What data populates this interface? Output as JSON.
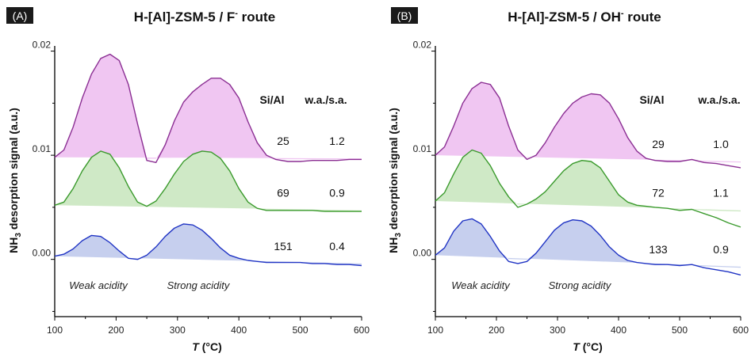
{
  "chart_data": [
    {
      "type": "area",
      "panel_label": "(A)",
      "title_main": "H-[Al]-ZSM-5 / F",
      "title_sup": "-",
      "title_tail": " route",
      "xlabel_italic": "T",
      "xlabel_rest": " (°C)",
      "ylabel_pre": "NH",
      "ylabel_sub": "3",
      "ylabel_post": " desorption signal (a.u.)",
      "xlim": [
        100,
        600
      ],
      "ylim": [
        -0.0055,
        0.0205
      ],
      "xticks": [
        "100",
        "200",
        "300",
        "400",
        "500",
        "600"
      ],
      "yticks": [
        "0.00",
        "0.01",
        "0.02"
      ],
      "table_headers": [
        "Si/Al",
        "w.a./s.a."
      ],
      "annotations": [
        "Weak acidity",
        "Strong acidity"
      ],
      "series": [
        {
          "color": "#8b2f93",
          "fill": "#f0c6f2",
          "si_al": "25",
          "ratio": "1.2",
          "x": [
            100,
            115,
            130,
            145,
            160,
            175,
            190,
            205,
            220,
            235,
            250,
            265,
            280,
            295,
            310,
            325,
            340,
            355,
            370,
            385,
            400,
            415,
            430,
            445,
            460,
            480,
            500,
            520,
            540,
            560,
            580,
            600
          ],
          "y": [
            0.0098,
            0.0105,
            0.0127,
            0.0155,
            0.0178,
            0.0193,
            0.0197,
            0.0191,
            0.0168,
            0.013,
            0.0095,
            0.0093,
            0.011,
            0.0133,
            0.0151,
            0.0161,
            0.0168,
            0.0174,
            0.0174,
            0.0168,
            0.0155,
            0.0132,
            0.0112,
            0.01,
            0.0096,
            0.0094,
            0.0094,
            0.0095,
            0.0095,
            0.0095,
            0.0096,
            0.0096
          ],
          "base": [
            0.0098,
            0.0097
          ]
        },
        {
          "color": "#3a9a2c",
          "fill": "#cfe9c6",
          "si_al": "69",
          "ratio": "0.9",
          "x": [
            100,
            115,
            130,
            145,
            160,
            175,
            190,
            205,
            220,
            235,
            250,
            265,
            280,
            295,
            310,
            325,
            340,
            355,
            370,
            385,
            400,
            415,
            430,
            445,
            460,
            480,
            500,
            520,
            540,
            560,
            580,
            600
          ],
          "y": [
            0.0052,
            0.0055,
            0.0068,
            0.0085,
            0.0098,
            0.0104,
            0.0101,
            0.0088,
            0.007,
            0.0055,
            0.0051,
            0.0056,
            0.0068,
            0.0082,
            0.0094,
            0.0101,
            0.0104,
            0.0103,
            0.0097,
            0.0085,
            0.0068,
            0.0055,
            0.0049,
            0.0047,
            0.0047,
            0.0047,
            0.0047,
            0.0047,
            0.0046,
            0.0046,
            0.0046,
            0.0046
          ],
          "base": [
            0.0052,
            0.0047
          ]
        },
        {
          "color": "#2034c4",
          "fill": "#c6cfee",
          "si_al": "151",
          "ratio": "0.4",
          "x": [
            100,
            115,
            130,
            145,
            160,
            175,
            190,
            205,
            220,
            235,
            250,
            265,
            280,
            295,
            310,
            325,
            340,
            355,
            370,
            385,
            400,
            415,
            430,
            445,
            460,
            480,
            500,
            520,
            540,
            560,
            580,
            600
          ],
          "y": [
            0.0003,
            0.0005,
            0.001,
            0.0018,
            0.0023,
            0.0022,
            0.0016,
            0.0008,
            0.0001,
            0.0,
            0.0004,
            0.0012,
            0.0022,
            0.003,
            0.0034,
            0.0033,
            0.0028,
            0.002,
            0.0011,
            0.0004,
            0.0001,
            -0.0001,
            -0.0002,
            -0.0003,
            -0.0003,
            -0.0003,
            -0.0003,
            -0.0004,
            -0.0004,
            -0.0005,
            -0.0005,
            -0.0006
          ],
          "base": [
            0.0003,
            -0.0004
          ]
        }
      ]
    },
    {
      "type": "area",
      "panel_label": "(B)",
      "title_main": "H-[Al]-ZSM-5 / OH",
      "title_sup": "-",
      "title_tail": " route",
      "xlabel_italic": "T",
      "xlabel_rest": " (°C)",
      "ylabel_pre": "NH",
      "ylabel_sub": "3",
      "ylabel_post": " desorption signal (a.u.)",
      "xlim": [
        100,
        600
      ],
      "ylim": [
        -0.0055,
        0.0205
      ],
      "xticks": [
        "100",
        "200",
        "300",
        "400",
        "500",
        "600"
      ],
      "yticks": [
        "0.00",
        "0.01",
        "0.02"
      ],
      "table_headers": [
        "Si/Al",
        "w.a./s.a."
      ],
      "annotations": [
        "Weak acidity",
        "Strong acidity"
      ],
      "series": [
        {
          "color": "#8b2f93",
          "fill": "#f0c6f2",
          "si_al": "29",
          "ratio": "1.0",
          "x": [
            100,
            115,
            130,
            145,
            160,
            175,
            190,
            205,
            220,
            235,
            250,
            265,
            280,
            295,
            310,
            325,
            340,
            355,
            370,
            385,
            400,
            415,
            430,
            445,
            460,
            480,
            500,
            520,
            540,
            560,
            580,
            600
          ],
          "y": [
            0.01,
            0.0108,
            0.0128,
            0.015,
            0.0164,
            0.017,
            0.0168,
            0.0155,
            0.0128,
            0.0105,
            0.0096,
            0.01,
            0.0112,
            0.0127,
            0.014,
            0.015,
            0.0156,
            0.0159,
            0.0158,
            0.015,
            0.0135,
            0.0117,
            0.0104,
            0.0097,
            0.0095,
            0.0094,
            0.0094,
            0.0096,
            0.0093,
            0.0092,
            0.009,
            0.0088
          ],
          "base": [
            0.01,
            0.0094
          ]
        },
        {
          "color": "#3a9a2c",
          "fill": "#cfe9c6",
          "si_al": "72",
          "ratio": "1.1",
          "x": [
            100,
            115,
            130,
            145,
            160,
            175,
            190,
            205,
            220,
            235,
            250,
            265,
            280,
            295,
            310,
            325,
            340,
            355,
            370,
            385,
            400,
            415,
            430,
            445,
            460,
            480,
            500,
            520,
            540,
            560,
            580,
            600
          ],
          "y": [
            0.0056,
            0.0064,
            0.0082,
            0.0098,
            0.0105,
            0.0102,
            0.009,
            0.0073,
            0.006,
            0.005,
            0.0053,
            0.0058,
            0.0065,
            0.0075,
            0.0085,
            0.0092,
            0.0095,
            0.0094,
            0.0088,
            0.0075,
            0.0062,
            0.0055,
            0.0052,
            0.0051,
            0.005,
            0.0049,
            0.0047,
            0.0048,
            0.0044,
            0.004,
            0.0035,
            0.0031
          ],
          "base": [
            0.0056,
            0.0047
          ]
        },
        {
          "color": "#2034c4",
          "fill": "#c6cfee",
          "si_al": "133",
          "ratio": "0.9",
          "x": [
            100,
            115,
            130,
            145,
            160,
            175,
            190,
            205,
            220,
            235,
            250,
            265,
            280,
            295,
            310,
            325,
            340,
            355,
            370,
            385,
            400,
            415,
            430,
            445,
            460,
            480,
            500,
            520,
            540,
            560,
            580,
            600
          ],
          "y": [
            0.0004,
            0.0011,
            0.0027,
            0.0037,
            0.0039,
            0.0034,
            0.0022,
            0.0008,
            -0.0002,
            -0.0004,
            -0.0002,
            0.0006,
            0.0017,
            0.0028,
            0.0035,
            0.0038,
            0.0037,
            0.0032,
            0.0023,
            0.0012,
            0.0004,
            -0.0001,
            -0.0003,
            -0.0004,
            -0.0005,
            -0.0005,
            -0.0006,
            -0.0005,
            -0.0008,
            -0.001,
            -0.0012,
            -0.0015
          ],
          "base": [
            0.0004,
            -0.0007
          ]
        }
      ]
    }
  ]
}
